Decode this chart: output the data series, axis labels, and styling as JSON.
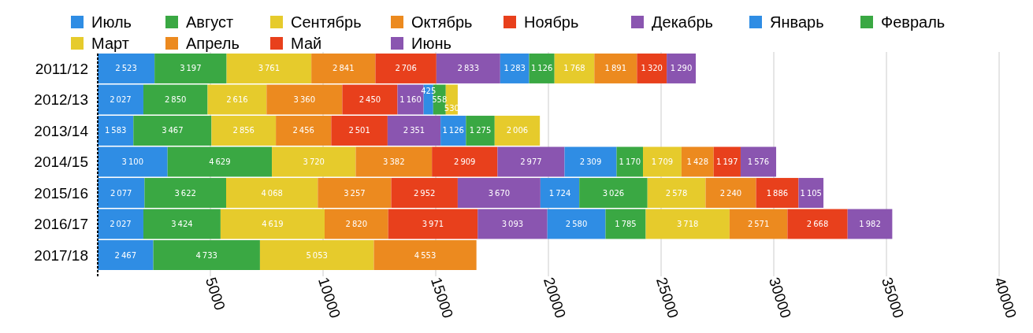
{
  "chart_data": {
    "type": "bar",
    "orientation": "horizontal",
    "stacked": true,
    "data_labels": true,
    "grid": "x",
    "legend": "top",
    "categories": [
      "2011/12",
      "2012/13",
      "2013/14",
      "2014/15",
      "2015/16",
      "2016/17",
      "2017/18"
    ],
    "xlim": [
      0,
      40000
    ],
    "xticks": [
      5000,
      10000,
      15000,
      20000,
      25000,
      30000,
      35000,
      40000
    ],
    "series": [
      {
        "name": "Июль",
        "color": "#2f8de4",
        "values": [
          2523,
          2027,
          1583,
          3100,
          2077,
          2027,
          2467
        ]
      },
      {
        "name": "Август",
        "color": "#3aa843",
        "values": [
          3197,
          2850,
          3467,
          4629,
          3622,
          3424,
          4733
        ]
      },
      {
        "name": "Сентябрь",
        "color": "#e6cb2c",
        "values": [
          3761,
          2616,
          2856,
          3720,
          4068,
          4619,
          5053
        ]
      },
      {
        "name": "Октябрь",
        "color": "#ec8a1f",
        "values": [
          2841,
          3360,
          2456,
          3382,
          3257,
          2820,
          4553
        ]
      },
      {
        "name": "Ноябрь",
        "color": "#e8401c",
        "values": [
          2706,
          2450,
          2501,
          2909,
          2952,
          3971,
          null
        ]
      },
      {
        "name": "Декабрь",
        "color": "#8a55b0",
        "values": [
          2833,
          1160,
          2351,
          2977,
          3670,
          3093,
          null
        ]
      },
      {
        "name": "Январь",
        "color": "#2f8de4",
        "values": [
          1283,
          425,
          1126,
          2309,
          1724,
          2580,
          null
        ]
      },
      {
        "name": "Февраль",
        "color": "#3aa843",
        "values": [
          1126,
          558,
          1275,
          1170,
          3026,
          1785,
          null
        ]
      },
      {
        "name": "Март",
        "color": "#e6cb2c",
        "values": [
          1768,
          530,
          2006,
          1709,
          2578,
          3718,
          null
        ]
      },
      {
        "name": "Апрель",
        "color": "#ec8a1f",
        "values": [
          1891,
          null,
          null,
          1428,
          2240,
          2571,
          null
        ]
      },
      {
        "name": "Май",
        "color": "#e8401c",
        "values": [
          1320,
          null,
          null,
          1197,
          1886,
          2668,
          null
        ]
      },
      {
        "name": "Июнь",
        "color": "#8a55b0",
        "values": [
          1290,
          null,
          null,
          1576,
          1105,
          1982,
          null
        ]
      }
    ]
  }
}
